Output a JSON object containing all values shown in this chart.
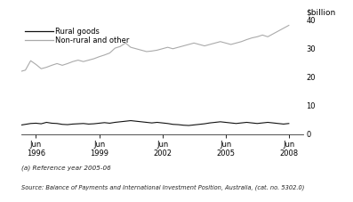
{
  "ylabel": "$billion",
  "ylim": [
    0,
    40
  ],
  "yticks": [
    0,
    10,
    20,
    30,
    40
  ],
  "xtick_positions": [
    1996.5,
    1999.5,
    2002.5,
    2005.5,
    2008.5
  ],
  "xtick_labels": [
    "Jun\n1996",
    "Jun\n1999",
    "Jun\n2002",
    "Jun\n2005",
    "Jun\n2008"
  ],
  "xlim_start": 1995.8,
  "xlim_end": 2009.2,
  "legend_rural": "Rural goods",
  "legend_nonrural": "Non-rural and other",
  "rural_color": "#111111",
  "nonrural_color": "#aaaaaa",
  "footnote": "(a) Reference year 2005-06",
  "source": "Source: Balance of Payments and International Investment Position, Australia, (cat. no. 5302.0)",
  "rural_data_x": [
    1995.75,
    1996.0,
    1996.25,
    1996.5,
    1996.75,
    1997.0,
    1997.25,
    1997.5,
    1997.75,
    1998.0,
    1998.25,
    1998.5,
    1998.75,
    1999.0,
    1999.25,
    1999.5,
    1999.75,
    2000.0,
    2000.25,
    2000.5,
    2000.75,
    2001.0,
    2001.25,
    2001.5,
    2001.75,
    2002.0,
    2002.25,
    2002.5,
    2002.75,
    2003.0,
    2003.25,
    2003.5,
    2003.75,
    2004.0,
    2004.25,
    2004.5,
    2004.75,
    2005.0,
    2005.25,
    2005.5,
    2005.75,
    2006.0,
    2006.25,
    2006.5,
    2006.75,
    2007.0,
    2007.25,
    2007.5,
    2007.75,
    2008.0,
    2008.25,
    2008.5
  ],
  "rural_data_y": [
    3.2,
    3.5,
    3.8,
    3.9,
    3.7,
    4.2,
    3.9,
    3.8,
    3.5,
    3.4,
    3.6,
    3.7,
    3.8,
    3.6,
    3.7,
    3.9,
    4.1,
    3.9,
    4.2,
    4.4,
    4.6,
    4.8,
    4.6,
    4.4,
    4.2,
    4.0,
    4.2,
    4.0,
    3.8,
    3.5,
    3.4,
    3.2,
    3.1,
    3.3,
    3.5,
    3.7,
    4.0,
    4.2,
    4.4,
    4.2,
    4.0,
    3.8,
    4.0,
    4.2,
    4.0,
    3.8,
    4.0,
    4.2,
    4.0,
    3.8,
    3.6,
    3.8
  ],
  "nonrural_data_x": [
    1995.75,
    1996.0,
    1996.25,
    1996.5,
    1996.75,
    1997.0,
    1997.25,
    1997.5,
    1997.75,
    1998.0,
    1998.25,
    1998.5,
    1998.75,
    1999.0,
    1999.25,
    1999.5,
    1999.75,
    2000.0,
    2000.25,
    2000.5,
    2000.75,
    2001.0,
    2001.25,
    2001.5,
    2001.75,
    2002.0,
    2002.25,
    2002.5,
    2002.75,
    2003.0,
    2003.25,
    2003.5,
    2003.75,
    2004.0,
    2004.25,
    2004.5,
    2004.75,
    2005.0,
    2005.25,
    2005.5,
    2005.75,
    2006.0,
    2006.25,
    2006.5,
    2006.75,
    2007.0,
    2007.25,
    2007.5,
    2007.75,
    2008.0,
    2008.25,
    2008.5
  ],
  "nonrural_data_y": [
    22.0,
    22.5,
    25.8,
    24.5,
    23.0,
    23.5,
    24.2,
    24.8,
    24.2,
    24.8,
    25.5,
    26.0,
    25.5,
    26.0,
    26.5,
    27.2,
    27.8,
    28.5,
    30.2,
    30.8,
    32.0,
    30.5,
    30.0,
    29.5,
    29.0,
    29.2,
    29.5,
    30.0,
    30.5,
    30.0,
    30.5,
    31.0,
    31.5,
    32.0,
    31.5,
    31.0,
    31.5,
    32.0,
    32.5,
    32.0,
    31.5,
    32.0,
    32.5,
    33.2,
    33.8,
    34.2,
    34.8,
    34.2,
    35.2,
    36.2,
    37.2,
    38.2
  ]
}
